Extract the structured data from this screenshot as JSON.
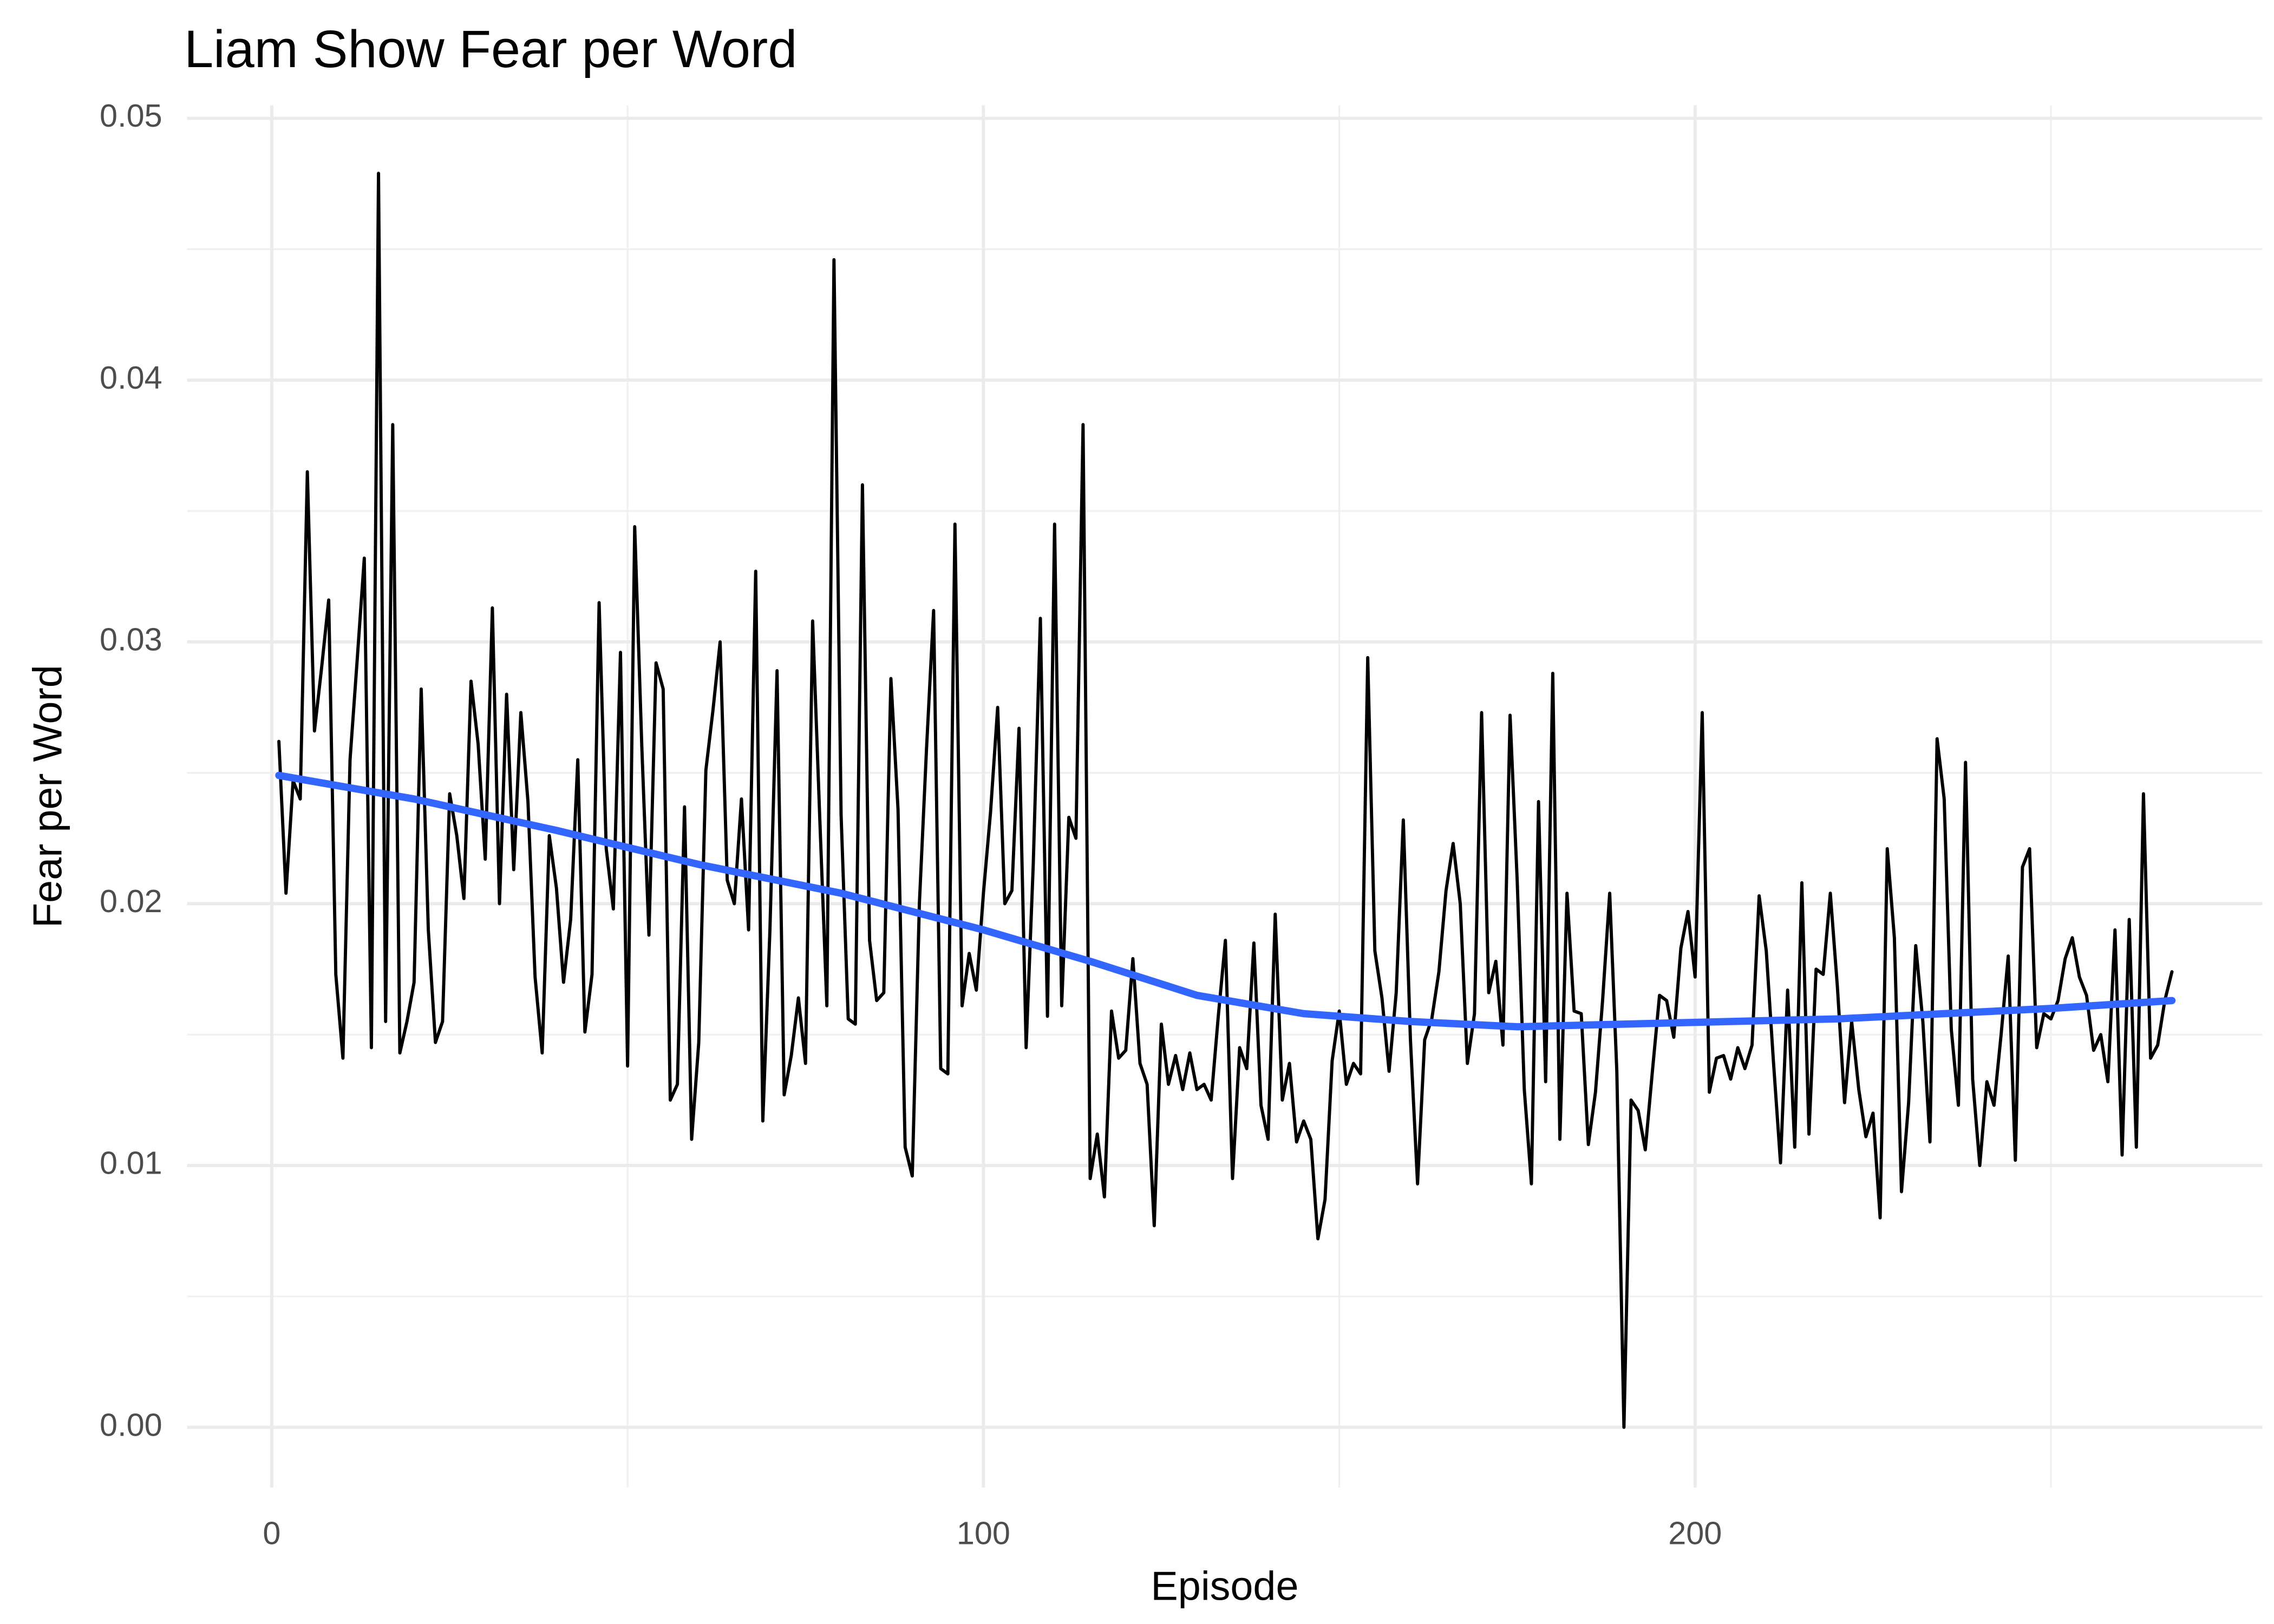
{
  "chart_data": {
    "type": "line",
    "title": "Liam Show Fear per Word",
    "x_label": "Episode",
    "y_label": "Fear per Word",
    "xlim": [
      -11.9,
      279.7
    ],
    "ylim": [
      -0.0023,
      0.0505
    ],
    "xticks": [
      0,
      100,
      200
    ],
    "yticks": [
      {
        "value": 0,
        "label": "0.00"
      },
      {
        "value": 0.01,
        "label": "0.01"
      },
      {
        "value": 0.02,
        "label": "0.02"
      },
      {
        "value": 0.03,
        "label": "0.03"
      },
      {
        "value": 0.04,
        "label": "0.04"
      },
      {
        "value": 0.05,
        "label": "0.05"
      }
    ],
    "x_minor_grid": [
      50,
      150,
      250
    ],
    "y_minor_grid": [
      0.005,
      0.015,
      0.025,
      0.035,
      0.045
    ],
    "grid": true,
    "series": [
      {
        "color": "#000000",
        "x": [
          1,
          2,
          3,
          4,
          5,
          6,
          7,
          8,
          9,
          10,
          11,
          12,
          13,
          14,
          15,
          16,
          17,
          18,
          19,
          20,
          21,
          22,
          23,
          24,
          25,
          26,
          27,
          28,
          29,
          30,
          31,
          32,
          33,
          34,
          35,
          36,
          37,
          38,
          39,
          40,
          41,
          42,
          43,
          44,
          45,
          46,
          47,
          48,
          49,
          50,
          51,
          52,
          53,
          54,
          55,
          56,
          57,
          58,
          59,
          60,
          61,
          62,
          63,
          64,
          65,
          66,
          67,
          68,
          69,
          70,
          71,
          72,
          73,
          74,
          75,
          76,
          77,
          78,
          79,
          80,
          81,
          82,
          83,
          84,
          85,
          86,
          87,
          88,
          89,
          90,
          91,
          92,
          93,
          94,
          95,
          96,
          97,
          98,
          99,
          100,
          101,
          102,
          103,
          104,
          105,
          106,
          107,
          108,
          109,
          110,
          111,
          112,
          113,
          114,
          115,
          116,
          117,
          118,
          119,
          120,
          121,
          122,
          123,
          124,
          125,
          126,
          127,
          128,
          129,
          130,
          131,
          132,
          133,
          134,
          135,
          136,
          137,
          138,
          139,
          140,
          141,
          142,
          143,
          144,
          145,
          146,
          147,
          148,
          149,
          150,
          151,
          152,
          153,
          154,
          155,
          156,
          157,
          158,
          159,
          160,
          161,
          162,
          163,
          164,
          165,
          166,
          167,
          168,
          169,
          170,
          171,
          172,
          173,
          174,
          175,
          176,
          177,
          178,
          179,
          180,
          181,
          182,
          183,
          184,
          185,
          186,
          187,
          188,
          189,
          190,
          191,
          192,
          193,
          194,
          195,
          196,
          197,
          198,
          199,
          200,
          201,
          202,
          203,
          204,
          205,
          206,
          207,
          208,
          209,
          210,
          211,
          212,
          213,
          214,
          215,
          216,
          217,
          218,
          219,
          220,
          221,
          222,
          223,
          224,
          225,
          226,
          227,
          228,
          229,
          230,
          231,
          232,
          233,
          234,
          235,
          236,
          237,
          238,
          239,
          240,
          241,
          242,
          243,
          244,
          245,
          246,
          247,
          248,
          249,
          250,
          251,
          252,
          253,
          254,
          255,
          256,
          257,
          258,
          259,
          260,
          261,
          262,
          263,
          264,
          265,
          266,
          267
        ],
        "values": [
          0.0262,
          0.0204,
          0.0247,
          0.024,
          0.0365,
          0.0266,
          0.029,
          0.0316,
          0.0173,
          0.0141,
          0.0255,
          0.0293,
          0.0332,
          0.0145,
          0.0479,
          0.0155,
          0.0383,
          0.0143,
          0.0155,
          0.017,
          0.0282,
          0.019,
          0.0147,
          0.0155,
          0.0242,
          0.0226,
          0.0202,
          0.0285,
          0.0261,
          0.0217,
          0.0313,
          0.02,
          0.028,
          0.0213,
          0.0273,
          0.0239,
          0.0172,
          0.0143,
          0.0226,
          0.0206,
          0.017,
          0.0194,
          0.0255,
          0.0151,
          0.0173,
          0.0315,
          0.0221,
          0.0198,
          0.0296,
          0.0138,
          0.0344,
          0.026,
          0.0188,
          0.0292,
          0.0282,
          0.0125,
          0.0131,
          0.0237,
          0.011,
          0.0147,
          0.0251,
          0.0274,
          0.03,
          0.0209,
          0.02,
          0.024,
          0.019,
          0.0327,
          0.0117,
          0.019,
          0.0289,
          0.0127,
          0.0142,
          0.0164,
          0.0139,
          0.0308,
          0.0233,
          0.0161,
          0.0446,
          0.0234,
          0.0156,
          0.0154,
          0.036,
          0.0186,
          0.0163,
          0.0166,
          0.0286,
          0.0236,
          0.0107,
          0.0096,
          0.02,
          0.0259,
          0.0312,
          0.0137,
          0.0135,
          0.0345,
          0.0161,
          0.0181,
          0.0167,
          0.0204,
          0.0235,
          0.0275,
          0.02,
          0.0205,
          0.0267,
          0.0145,
          0.0215,
          0.0309,
          0.0157,
          0.0345,
          0.0161,
          0.0233,
          0.0225,
          0.0383,
          0.0095,
          0.0112,
          0.0088,
          0.0159,
          0.0141,
          0.0144,
          0.0179,
          0.0139,
          0.0131,
          0.0077,
          0.0154,
          0.0131,
          0.0142,
          0.0129,
          0.0143,
          0.0129,
          0.0131,
          0.0125,
          0.0157,
          0.0186,
          0.0095,
          0.0145,
          0.0137,
          0.0185,
          0.0123,
          0.011,
          0.0196,
          0.0125,
          0.0139,
          0.0109,
          0.0117,
          0.011,
          0.0072,
          0.0087,
          0.014,
          0.0159,
          0.0131,
          0.0139,
          0.0135,
          0.0294,
          0.0182,
          0.0164,
          0.0136,
          0.0166,
          0.0232,
          0.0148,
          0.0093,
          0.0148,
          0.0156,
          0.0174,
          0.0205,
          0.0223,
          0.02,
          0.0139,
          0.0158,
          0.0273,
          0.0166,
          0.0178,
          0.0146,
          0.0272,
          0.0209,
          0.0129,
          0.0093,
          0.0239,
          0.0132,
          0.0288,
          0.011,
          0.0204,
          0.0159,
          0.0158,
          0.0108,
          0.0128,
          0.0163,
          0.0204,
          0.0136,
          0.0,
          0.0125,
          0.0121,
          0.0106,
          0.0136,
          0.0165,
          0.0163,
          0.0149,
          0.0183,
          0.0197,
          0.0172,
          0.0273,
          0.0128,
          0.0141,
          0.0142,
          0.0133,
          0.0145,
          0.0137,
          0.0146,
          0.0203,
          0.0182,
          0.014,
          0.0101,
          0.0167,
          0.0107,
          0.0208,
          0.0112,
          0.0175,
          0.0173,
          0.0204,
          0.0168,
          0.0124,
          0.0155,
          0.0129,
          0.0111,
          0.012,
          0.008,
          0.0221,
          0.0187,
          0.009,
          0.0124,
          0.0184,
          0.0155,
          0.0109,
          0.0263,
          0.024,
          0.0152,
          0.0123,
          0.0254,
          0.0133,
          0.01,
          0.0132,
          0.0123,
          0.015,
          0.018,
          0.0102,
          0.0214,
          0.0221,
          0.0145,
          0.0158,
          0.0156,
          0.0163,
          0.0179,
          0.0187,
          0.0172,
          0.0165,
          0.0144,
          0.015,
          0.0132,
          0.019,
          0.0104,
          0.0194,
          0.0107,
          0.0242,
          0.0141,
          0.0146,
          0.0163,
          0.0174
        ]
      },
      {
        "color": "#3366ff",
        "x": [
          1,
          20,
          40,
          60,
          80,
          100,
          115,
          130,
          145,
          160,
          175,
          190,
          205,
          220,
          235,
          250,
          267
        ],
        "values": [
          0.0249,
          0.024,
          0.0228,
          0.0215,
          0.0204,
          0.019,
          0.0178,
          0.0165,
          0.0158,
          0.0155,
          0.0153,
          0.0154,
          0.0155,
          0.0156,
          0.0158,
          0.016,
          0.0163
        ]
      }
    ]
  }
}
